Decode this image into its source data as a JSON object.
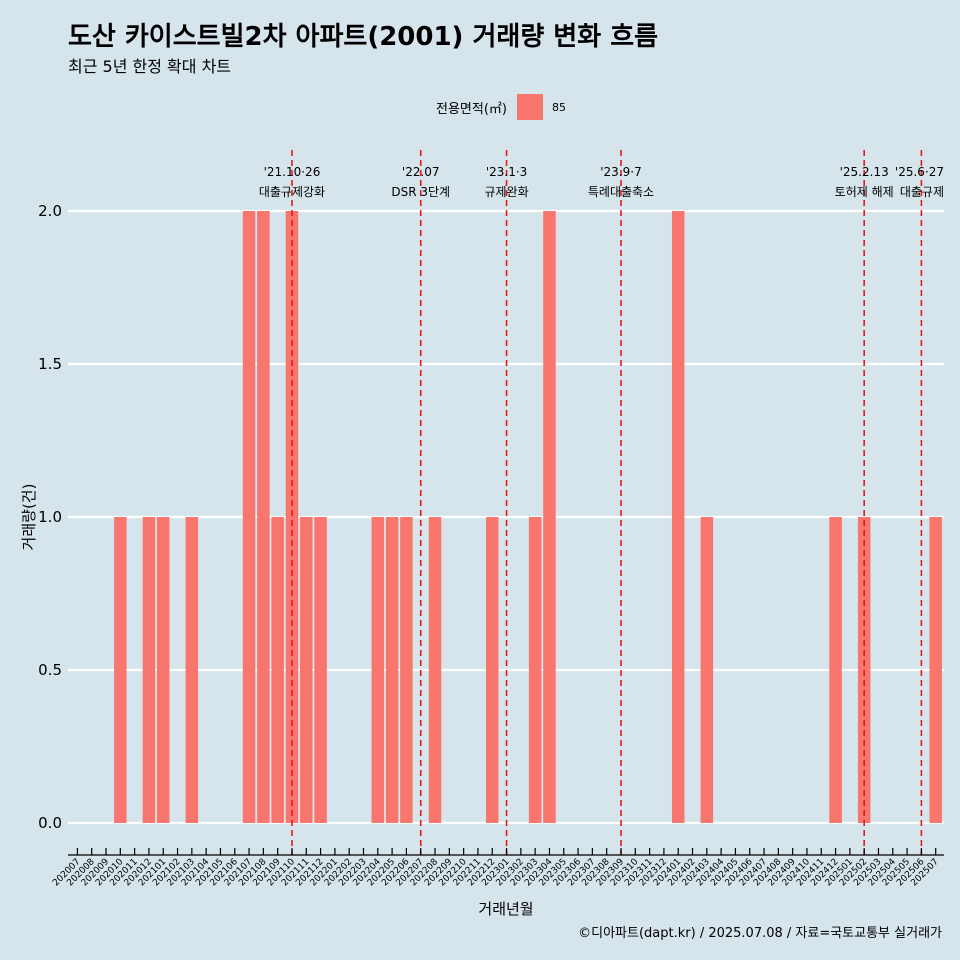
{
  "title": "도산 카이스트빌2차 아파트(2001) 거래량 변화 흐름",
  "subtitle": "최근 5년 한정 확대 차트",
  "caption": "©디아파트(dapt.kr) / 2025.07.08 / 자료=국토교통부 실거래가",
  "legend": {
    "title": "전용면적(㎡)",
    "label": "85",
    "color": "#f8766d"
  },
  "colors": {
    "background": "#d6e4eb",
    "bar": "#f8766d",
    "gridline": "#ffffff",
    "event_line": "#e31a1c"
  },
  "chart_data": {
    "type": "bar",
    "xlabel": "거래년월",
    "ylabel": "거래량(건)",
    "ylim": [
      0,
      2
    ],
    "yticks": [
      "0.0",
      "0.5",
      "1.0",
      "1.5",
      "2.0"
    ],
    "grid": "horizontal",
    "legend_position": "top",
    "categories": [
      "202007",
      "202008",
      "202009",
      "202010",
      "202011",
      "202012",
      "202101",
      "202102",
      "202103",
      "202104",
      "202105",
      "202106",
      "202107",
      "202108",
      "202109",
      "202110",
      "202111",
      "202112",
      "202201",
      "202202",
      "202203",
      "202204",
      "202205",
      "202206",
      "202207",
      "202208",
      "202209",
      "202210",
      "202211",
      "202212",
      "202301",
      "202302",
      "202303",
      "202304",
      "202305",
      "202306",
      "202307",
      "202308",
      "202309",
      "202310",
      "202311",
      "202312",
      "202401",
      "202402",
      "202403",
      "202404",
      "202405",
      "202406",
      "202407",
      "202408",
      "202409",
      "202410",
      "202411",
      "202412",
      "202501",
      "202502",
      "202503",
      "202504",
      "202505",
      "202506",
      "202507"
    ],
    "series": [
      {
        "name": "85",
        "values": [
          0,
          0,
          0,
          1,
          0,
          1,
          1,
          0,
          1,
          0,
          0,
          0,
          2,
          2,
          1,
          2,
          1,
          1,
          0,
          0,
          0,
          1,
          1,
          1,
          0,
          1,
          0,
          0,
          0,
          1,
          0,
          0,
          1,
          2,
          0,
          0,
          0,
          0,
          0,
          0,
          0,
          0,
          2,
          0,
          1,
          0,
          0,
          0,
          0,
          0,
          0,
          0,
          0,
          1,
          0,
          1,
          0,
          0,
          0,
          0,
          1
        ]
      }
    ],
    "events": [
      {
        "date": "202110",
        "date_label": "'21.10·26",
        "label": "대출규제강화"
      },
      {
        "date": "202207",
        "date_label": "'22.07",
        "label": "DSR 3단계"
      },
      {
        "date": "202301",
        "date_label": "'23.1·3",
        "label": "규제완화"
      },
      {
        "date": "202309",
        "date_label": "'23.9·7",
        "label": "특례대출축소"
      },
      {
        "date": "202502",
        "date_label": "'25.2.13",
        "label": "토허제 해제"
      },
      {
        "date": "202506",
        "date_label": "'25.6·27",
        "label": "대출규제"
      }
    ]
  }
}
